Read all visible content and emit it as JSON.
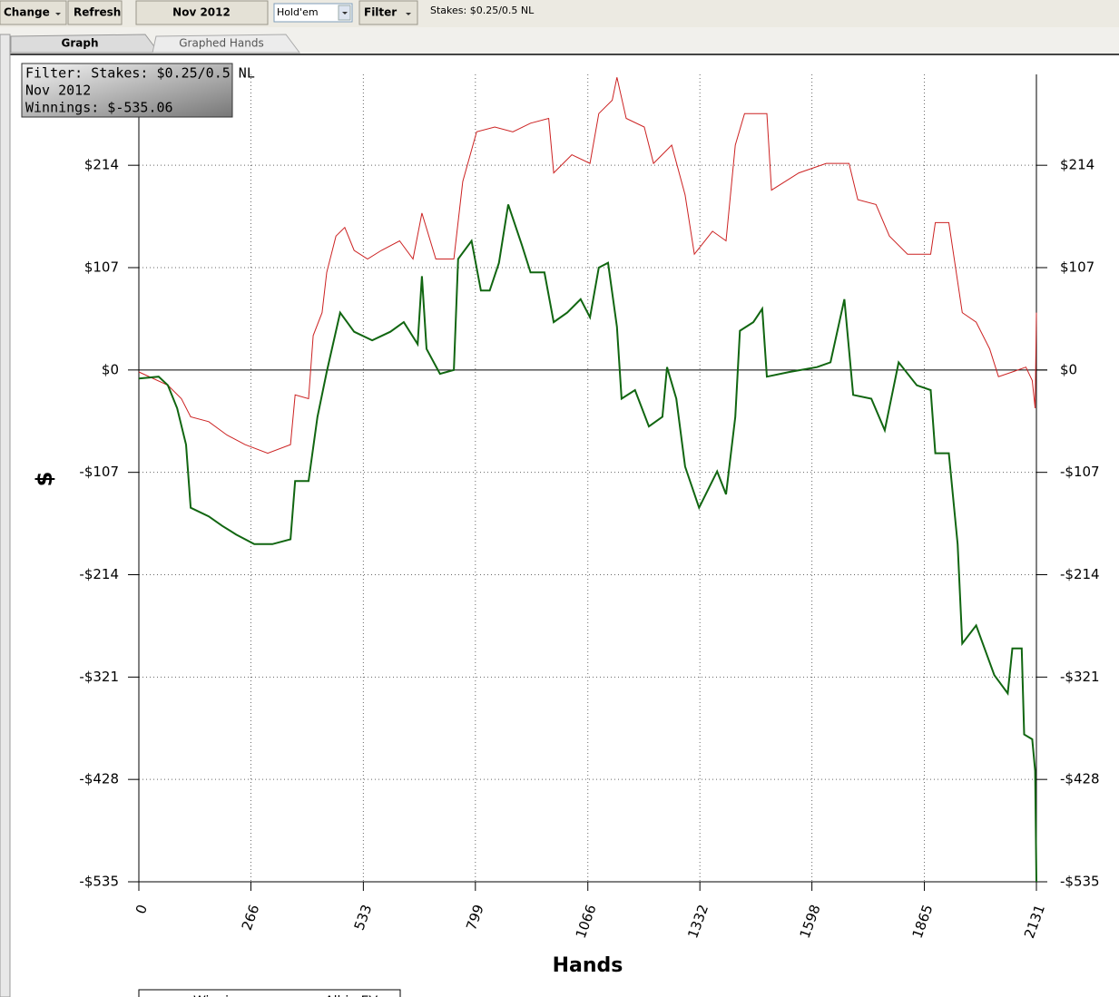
{
  "toolbar": {
    "buttons": [
      "Change",
      "Refresh",
      "Nov 2012"
    ],
    "game_select": "Hold'em",
    "filter_button": "Filter",
    "stakes_text": "Stakes: $0.25/0.5 NL"
  },
  "tabs": [
    "Graph",
    "Graphed Hands"
  ],
  "info_box": [
    "Filter: Stakes: $0.25/0.5 NL",
    "Nov 2012",
    "Winnings: $-535.06"
  ],
  "chart_data": {
    "type": "line",
    "x_label": "Hands",
    "y_label": "$",
    "xlim": [
      0,
      2131
    ],
    "xticks": [
      0,
      266,
      533,
      799,
      1066,
      1332,
      1598,
      1865,
      2131
    ],
    "ylim": [
      -535,
      309
    ],
    "yticks": [
      {
        "value": 214,
        "label": "$214"
      },
      {
        "value": 107,
        "label": "$107"
      },
      {
        "value": 0,
        "label": "$0"
      },
      {
        "value": -107,
        "label": "-$107"
      },
      {
        "value": -214,
        "label": "-$214"
      },
      {
        "value": -321,
        "label": "-$321"
      },
      {
        "value": -428,
        "label": "-$428"
      },
      {
        "value": -535,
        "label": "-$535"
      }
    ],
    "grid": true,
    "series": [
      {
        "name": "All-in EV",
        "color": "#cc2222",
        "x": [
          0,
          69,
          101,
          123,
          166,
          209,
          252,
          306,
          360,
          371,
          403,
          414,
          435,
          446,
          468,
          489,
          511,
          543,
          576,
          619,
          651,
          672,
          705,
          748,
          769,
          802,
          845,
          888,
          930,
          973,
          985,
          1028,
          1071,
          1092,
          1124,
          1135,
          1157,
          1200,
          1222,
          1265,
          1297,
          1319,
          1362,
          1394,
          1416,
          1438,
          1491,
          1502,
          1567,
          1632,
          1686,
          1707,
          1750,
          1782,
          1825,
          1880,
          1891,
          1923,
          1955,
          1988,
          2020,
          2041,
          2074,
          2106,
          2121,
          2128,
          2131
        ],
        "values": [
          -2,
          -16,
          -30,
          -49,
          -54,
          -68,
          -78,
          -87,
          -78,
          -26,
          -30,
          36,
          60,
          102,
          140,
          149,
          125,
          116,
          125,
          135,
          116,
          164,
          116,
          116,
          197,
          249,
          254,
          249,
          258,
          263,
          206,
          225,
          216,
          268,
          282,
          306,
          263,
          254,
          216,
          235,
          183,
          121,
          145,
          135,
          235,
          268,
          268,
          188,
          206,
          216,
          216,
          178,
          173,
          140,
          121,
          121,
          154,
          154,
          60,
          50,
          22,
          -7,
          -2,
          3,
          -11,
          -40,
          60
        ]
      },
      {
        "name": "Winnings",
        "color": "#116611",
        "x": [
          0,
          47,
          69,
          91,
          112,
          123,
          166,
          198,
          231,
          274,
          317,
          360,
          371,
          403,
          424,
          446,
          478,
          511,
          554,
          597,
          629,
          662,
          672,
          683,
          715,
          748,
          758,
          790,
          812,
          833,
          855,
          877,
          909,
          930,
          963,
          985,
          1017,
          1049,
          1071,
          1092,
          1114,
          1135,
          1146,
          1178,
          1211,
          1243,
          1254,
          1276,
          1297,
          1330,
          1373,
          1394,
          1416,
          1427,
          1459,
          1480,
          1491,
          1545,
          1610,
          1642,
          1675,
          1696,
          1739,
          1771,
          1804,
          1847,
          1880,
          1891,
          1923,
          1944,
          1955,
          1988,
          2031,
          2063,
          2074,
          2096,
          2102,
          2121,
          2128,
          2131
        ],
        "values": [
          -9,
          -7,
          -16,
          -40,
          -78,
          -144,
          -153,
          -163,
          -172,
          -182,
          -182,
          -177,
          -116,
          -116,
          -49,
          -2,
          60,
          40,
          31,
          40,
          50,
          27,
          98,
          22,
          -4,
          0,
          116,
          135,
          83,
          83,
          112,
          173,
          131,
          102,
          102,
          50,
          60,
          74,
          55,
          107,
          112,
          45,
          -30,
          -21,
          -59,
          -49,
          3,
          -30,
          -101,
          -144,
          -106,
          -130,
          -49,
          41,
          50,
          64,
          -7,
          -2,
          3,
          8,
          74,
          -26,
          -30,
          -63,
          8,
          -16,
          -21,
          -87,
          -87,
          -182,
          -286,
          -267,
          -319,
          -338,
          -291,
          -291,
          -381,
          -386,
          -419,
          -535
        ]
      }
    ]
  }
}
